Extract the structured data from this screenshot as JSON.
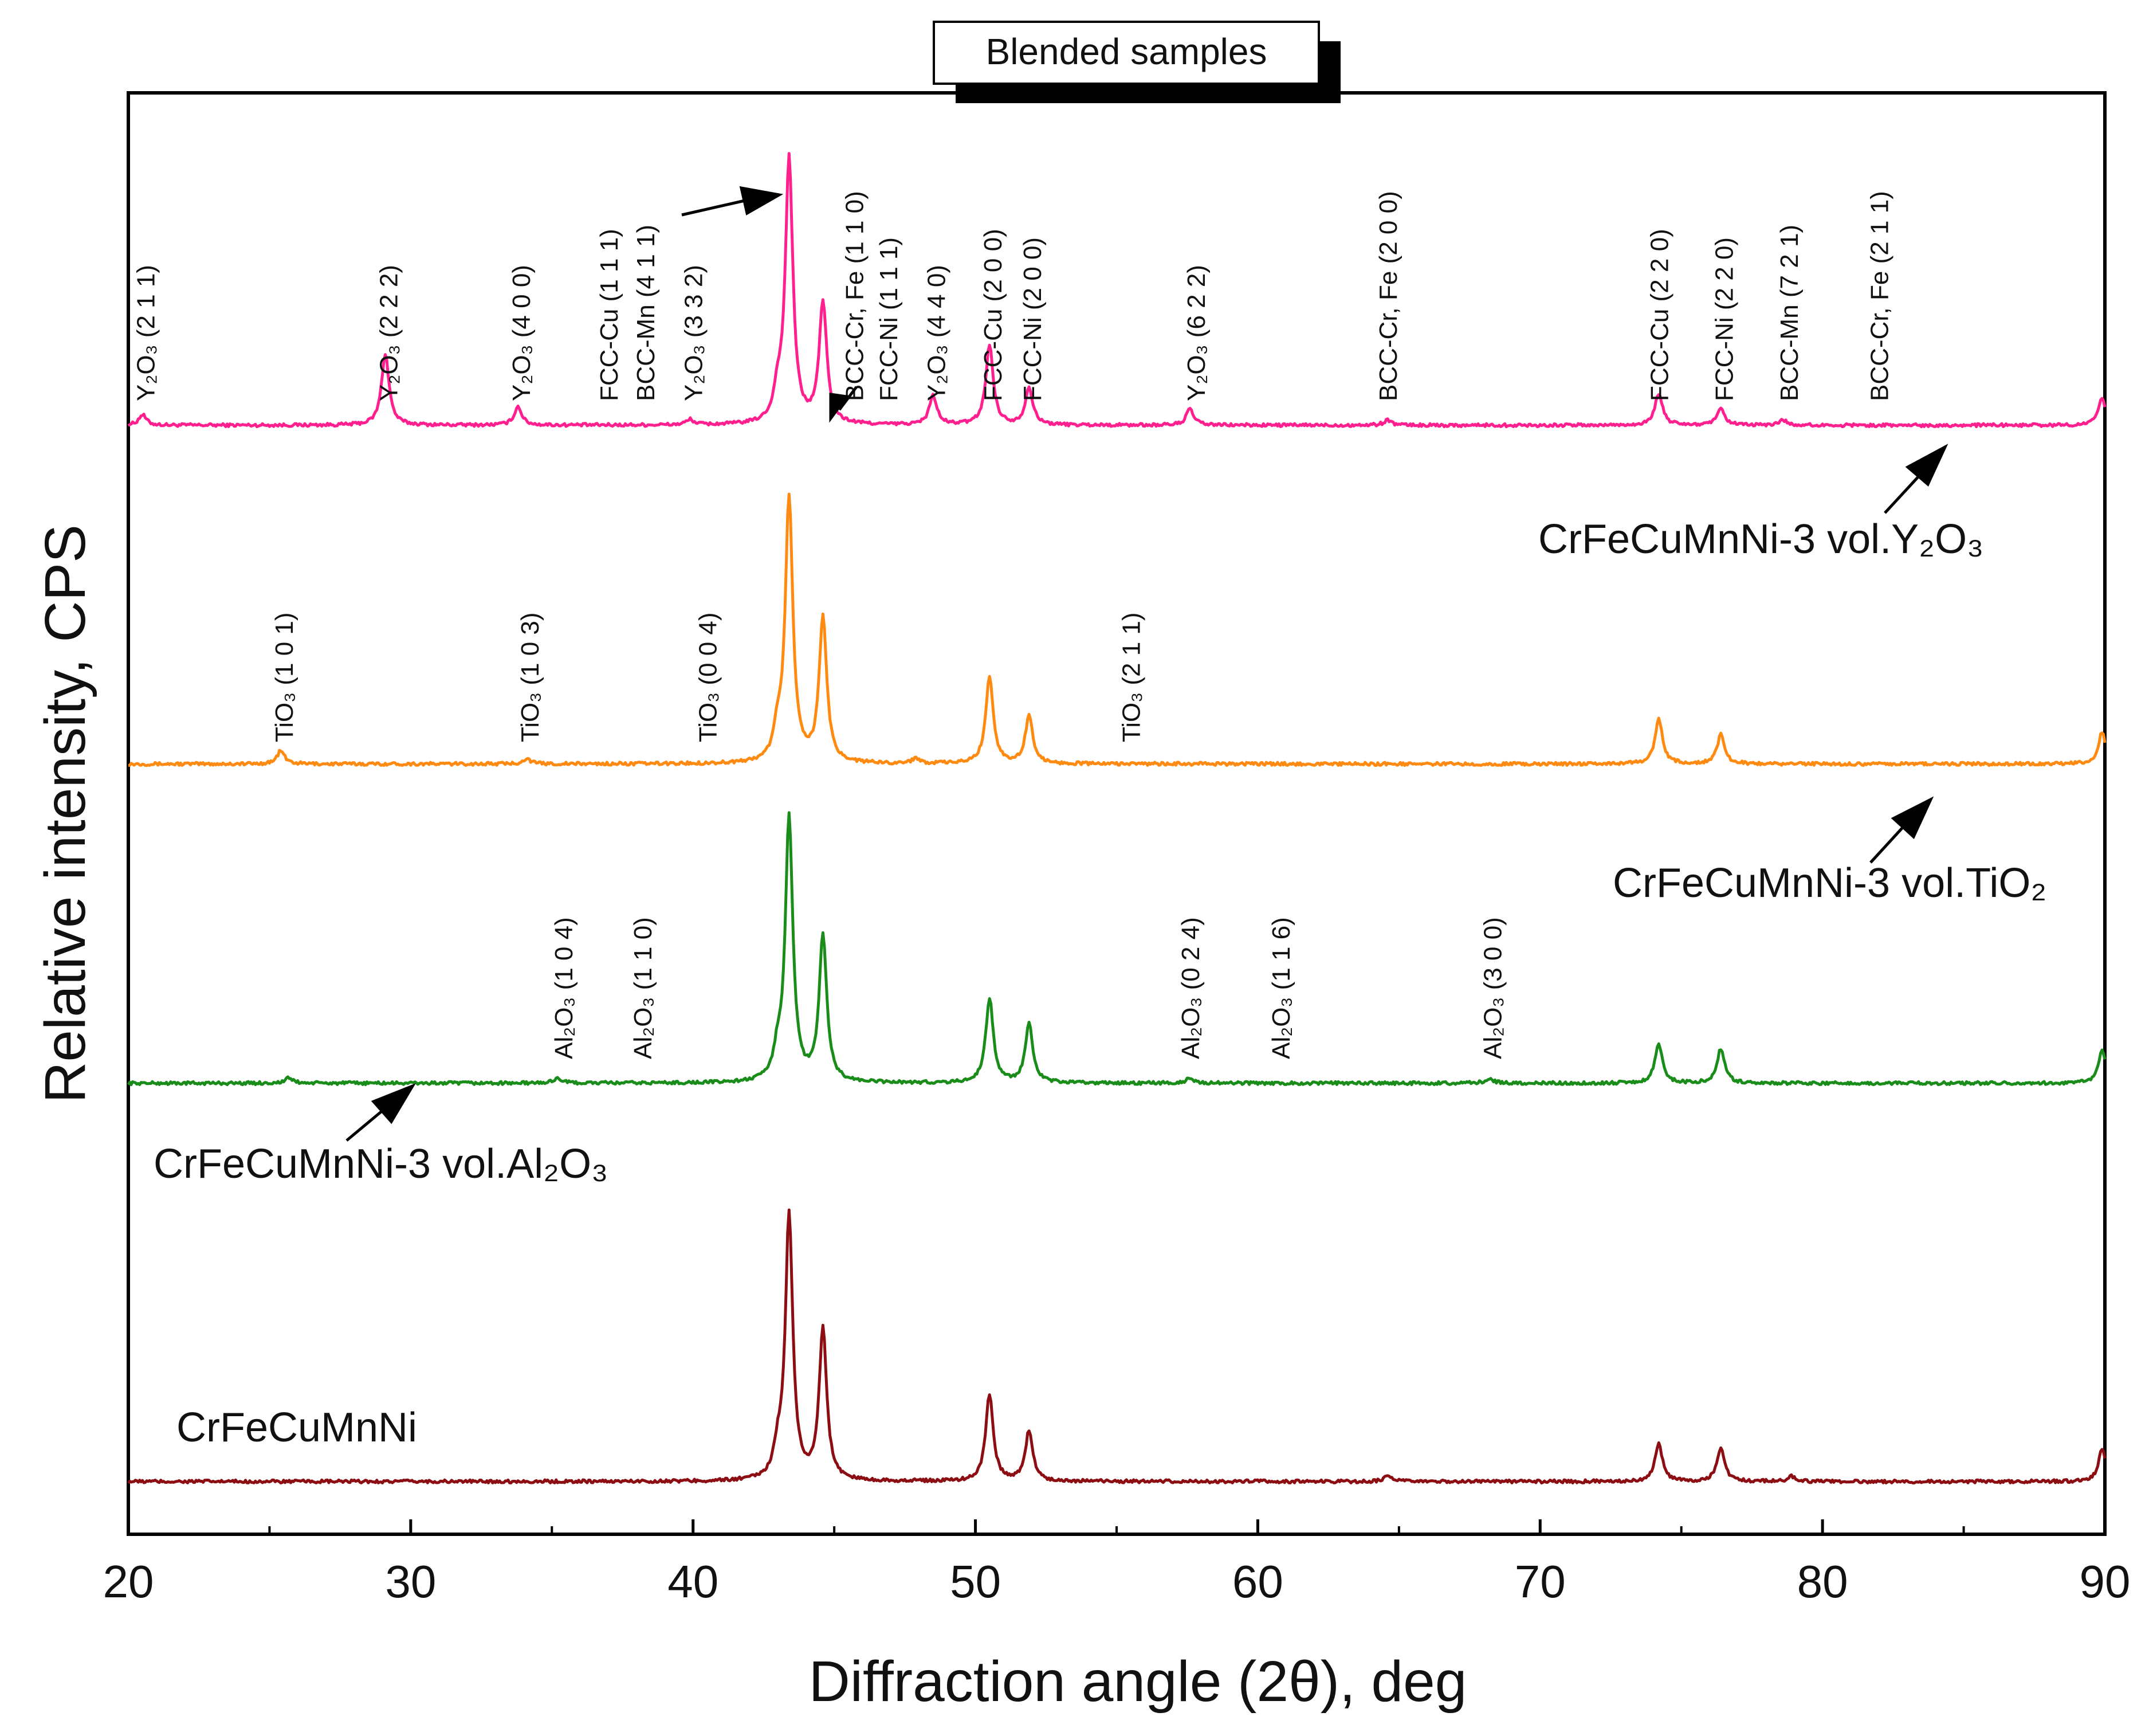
{
  "chart_data": {
    "type": "line",
    "title": "Blended samples",
    "xlabel": "Diffraction angle (2θ), deg",
    "ylabel": "Relative intensity, CPS",
    "xlim": [
      20,
      90
    ],
    "x_ticks": [
      20,
      30,
      40,
      50,
      60,
      70,
      80,
      90
    ],
    "x_tick_labels": [
      "20",
      "30",
      "40",
      "50",
      "60",
      "70",
      "80",
      "90"
    ],
    "grid": false,
    "series": [
      {
        "name": "CrFeCuMnNi-3 vol.Y2O3",
        "label_display": "CrFeCuMnNi-3 vol.Y₂O₃",
        "color": "#ff1f8e",
        "offset": 3,
        "peaks": [
          {
            "x": 20.5,
            "h": 0.04
          },
          {
            "x": 29.1,
            "h": 0.27
          },
          {
            "x": 33.8,
            "h": 0.07
          },
          {
            "x": 39.9,
            "h": 0.02
          },
          {
            "x": 43.0,
            "h": 0.1
          },
          {
            "x": 43.4,
            "h": 1.0
          },
          {
            "x": 44.6,
            "h": 0.46
          },
          {
            "x": 48.5,
            "h": 0.11
          },
          {
            "x": 50.5,
            "h": 0.3
          },
          {
            "x": 51.9,
            "h": 0.14
          },
          {
            "x": 57.6,
            "h": 0.06
          },
          {
            "x": 64.6,
            "h": 0.02
          },
          {
            "x": 74.2,
            "h": 0.12
          },
          {
            "x": 76.4,
            "h": 0.06
          },
          {
            "x": 78.6,
            "h": 0.02
          },
          {
            "x": 89.9,
            "h": 0.1
          }
        ]
      },
      {
        "name": "CrFeCuMnNi-3 vol.TiO2",
        "label_display": "CrFeCuMnNi-3 vol.TiO₂",
        "color": "#ff8a12",
        "offset": 2,
        "peaks": [
          {
            "x": 25.4,
            "h": 0.05
          },
          {
            "x": 34.1,
            "h": 0.02
          },
          {
            "x": 43.0,
            "h": 0.1
          },
          {
            "x": 43.4,
            "h": 1.0
          },
          {
            "x": 44.6,
            "h": 0.55
          },
          {
            "x": 47.9,
            "h": 0.02
          },
          {
            "x": 50.5,
            "h": 0.33
          },
          {
            "x": 51.9,
            "h": 0.18
          },
          {
            "x": 74.2,
            "h": 0.17
          },
          {
            "x": 76.4,
            "h": 0.11
          },
          {
            "x": 89.9,
            "h": 0.12
          }
        ]
      },
      {
        "name": "CrFeCuMnNi-3 vol.Al2O3",
        "label_display": "CrFeCuMnNi-3 vol.Al₂O₃",
        "color": "#1a8c1a",
        "offset": 1,
        "peaks": [
          {
            "x": 25.7,
            "h": 0.02
          },
          {
            "x": 35.2,
            "h": 0.02
          },
          {
            "x": 43.0,
            "h": 0.09
          },
          {
            "x": 43.4,
            "h": 1.0
          },
          {
            "x": 44.6,
            "h": 0.55
          },
          {
            "x": 50.5,
            "h": 0.32
          },
          {
            "x": 51.9,
            "h": 0.22
          },
          {
            "x": 57.6,
            "h": 0.02
          },
          {
            "x": 68.2,
            "h": 0.02
          },
          {
            "x": 74.2,
            "h": 0.15
          },
          {
            "x": 76.4,
            "h": 0.13
          },
          {
            "x": 89.9,
            "h": 0.12
          }
        ]
      },
      {
        "name": "CrFeCuMnNi",
        "label_display": "CrFeCuMnNi",
        "color": "#8c0e12",
        "offset": 0,
        "peaks": [
          {
            "x": 43.0,
            "h": 0.09
          },
          {
            "x": 43.4,
            "h": 1.0
          },
          {
            "x": 44.6,
            "h": 0.57
          },
          {
            "x": 50.5,
            "h": 0.33
          },
          {
            "x": 51.9,
            "h": 0.19
          },
          {
            "x": 64.6,
            "h": 0.02
          },
          {
            "x": 74.2,
            "h": 0.14
          },
          {
            "x": 76.4,
            "h": 0.13
          },
          {
            "x": 78.9,
            "h": 0.02
          },
          {
            "x": 89.9,
            "h": 0.12
          }
        ]
      }
    ],
    "annotations": [
      {
        "series": 0,
        "x": 20.6,
        "text": "Y₂O₃ (2 1 1)"
      },
      {
        "series": 0,
        "x": 29.2,
        "text": "Y₂O₃ (2 2 2)"
      },
      {
        "series": 0,
        "x": 33.9,
        "text": "Y₂O₃ (4 0 0)"
      },
      {
        "series": 0,
        "x": 37.0,
        "text": "FCC-Cu (1 1 1)"
      },
      {
        "series": 0,
        "x": 38.3,
        "text": "BCC-Mn (4 1 1)"
      },
      {
        "series": 0,
        "x": 40.0,
        "text": "Y₂O₃ (3 3 2)"
      },
      {
        "series": 0,
        "x": 45.7,
        "text": "BCC-Cr, Fe (1 1 0)"
      },
      {
        "series": 0,
        "x": 46.9,
        "text": "FCC-Ni (1 1 1)"
      },
      {
        "series": 0,
        "x": 48.6,
        "text": "Y₂O₃ (4 4 0)"
      },
      {
        "series": 0,
        "x": 50.6,
        "text": "FCC-Cu (2 0 0)"
      },
      {
        "series": 0,
        "x": 52.0,
        "text": "FCC-Ni (2 0 0)"
      },
      {
        "series": 0,
        "x": 57.8,
        "text": "Y₂O₃ (6 2 2)"
      },
      {
        "series": 0,
        "x": 64.6,
        "text": "BCC-Cr, Fe (2 0 0)"
      },
      {
        "series": 0,
        "x": 74.2,
        "text": "FCC-Cu (2 2 0)"
      },
      {
        "series": 0,
        "x": 76.5,
        "text": "FCC-Ni (2 2 0)"
      },
      {
        "series": 0,
        "x": 78.8,
        "text": "BCC-Mn (7 2 1)"
      },
      {
        "series": 0,
        "x": 82.0,
        "text": "BCC-Cr, Fe (2 1 1)"
      },
      {
        "series": 1,
        "x": 25.5,
        "text": "TiO₃ (1 0 1)"
      },
      {
        "series": 1,
        "x": 34.2,
        "text": "TiO₃ (1 0 3)"
      },
      {
        "series": 1,
        "x": 40.5,
        "text": "TiO₃ (0 0 4)"
      },
      {
        "series": 1,
        "x": 55.5,
        "text": "TiO₃ (2 1 1)"
      },
      {
        "series": 2,
        "x": 35.4,
        "text": "Al₂O₃ (1 0 4)"
      },
      {
        "series": 2,
        "x": 38.2,
        "text": "Al₂O₃ (1 1 0)"
      },
      {
        "series": 2,
        "x": 57.6,
        "text": "Al₂O₃ (0 2 4)"
      },
      {
        "series": 2,
        "x": 60.8,
        "text": "Al₂O₃ (1 1 6)"
      },
      {
        "series": 2,
        "x": 68.3,
        "text": "Al₂O₃ (3 0 0)"
      }
    ]
  }
}
